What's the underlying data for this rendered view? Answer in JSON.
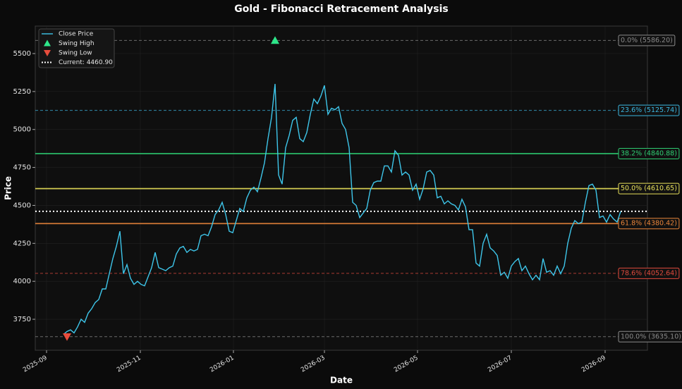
{
  "chart_data": {
    "type": "line",
    "title": "Gold - Fibonacci Retracement Analysis",
    "x_label": "Date",
    "y_label": "Price",
    "series": [
      {
        "name": "Close Price",
        "color": "#3ec6ea",
        "values": [
          3650,
          3670,
          3680,
          3660,
          3700,
          3750,
          3730,
          3790,
          3820,
          3860,
          3880,
          3950,
          3950,
          4050,
          4150,
          4230,
          4330,
          4050,
          4110,
          4020,
          3980,
          4000,
          3980,
          3970,
          4030,
          4090,
          4190,
          4090,
          4080,
          4070,
          4090,
          4100,
          4180,
          4220,
          4230,
          4190,
          4210,
          4200,
          4210,
          4300,
          4310,
          4300,
          4360,
          4440,
          4470,
          4520,
          4440,
          4330,
          4320,
          4400,
          4480,
          4460,
          4550,
          4600,
          4620,
          4590,
          4680,
          4780,
          4940,
          5080,
          5300,
          4700,
          4640,
          4880,
          4960,
          5060,
          5080,
          4940,
          4920,
          4980,
          5100,
          5200,
          5170,
          5220,
          5290,
          5100,
          5140,
          5130,
          5150,
          5040,
          5000,
          4880,
          4520,
          4500,
          4420,
          4450,
          4480,
          4600,
          4650,
          4660,
          4660,
          4760,
          4760,
          4720,
          4860,
          4830,
          4700,
          4720,
          4700,
          4600,
          4640,
          4540,
          4610,
          4720,
          4730,
          4700,
          4550,
          4560,
          4510,
          4530,
          4510,
          4500,
          4470,
          4540,
          4490,
          4340,
          4340,
          4120,
          4100,
          4250,
          4310,
          4220,
          4200,
          4170,
          4040,
          4060,
          4020,
          4100,
          4130,
          4150,
          4070,
          4100,
          4050,
          4010,
          4040,
          4010,
          4150,
          4060,
          4070,
          4040,
          4100,
          4050,
          4100,
          4250,
          4350,
          4400,
          4380,
          4390,
          4520,
          4630,
          4640,
          4600,
          4420,
          4430,
          4390,
          4440,
          4410,
          4390,
          4460
        ]
      }
    ],
    "markers": [
      {
        "name": "Swing High",
        "index": 60,
        "value": 5586.2,
        "color": "#2ee68a",
        "shape": "up"
      },
      {
        "name": "Swing Low",
        "index": 1,
        "value": 3635.1,
        "color": "#e74c3c",
        "shape": "down"
      }
    ],
    "current": {
      "name": "Current: 4460.90",
      "value": 4460.9,
      "color": "#ffffff"
    },
    "levels": [
      {
        "label": "0.0% (5586.20)",
        "value": 5586.2,
        "color": "#8a8a8a",
        "style": "dashed"
      },
      {
        "label": "23.6% (5125.74)",
        "value": 5125.74,
        "color": "#3bb6df",
        "style": "dashed"
      },
      {
        "label": "38.2% (4840.88)",
        "value": 4840.88,
        "color": "#2ecc71",
        "style": "solid"
      },
      {
        "label": "50.0% (4610.65)",
        "value": 4610.65,
        "color": "#e8e05a",
        "style": "solid"
      },
      {
        "label": "61.8% (4380.42)",
        "value": 4380.42,
        "color": "#e8843a",
        "style": "solid"
      },
      {
        "label": "78.6% (4052.64)",
        "value": 4052.64,
        "color": "#e04a3c",
        "style": "dashed"
      },
      {
        "label": "100.0% (3635.10)",
        "value": 3635.1,
        "color": "#8a8a8a",
        "style": "dashed"
      }
    ],
    "xlim": [
      -8,
      165.6
    ],
    "ylim": [
      3546,
      5681
    ],
    "xticks": [
      {
        "value": -4.8,
        "label": "2025-09"
      },
      {
        "value": 21.8,
        "label": "2025-11"
      },
      {
        "value": 48.2,
        "label": "2026-01"
      },
      {
        "value": 74,
        "label": "2026-03"
      },
      {
        "value": 100.4,
        "label": "2026-05"
      },
      {
        "value": 127,
        "label": "2026-07"
      },
      {
        "value": 153.6,
        "label": "2026-09"
      }
    ],
    "yticks": [
      3750,
      4000,
      4250,
      4500,
      4750,
      5000,
      5250,
      5500
    ],
    "grid": true,
    "legend": "upper left"
  }
}
